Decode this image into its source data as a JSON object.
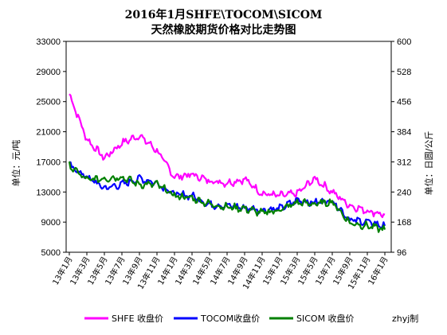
{
  "chart_data": {
    "type": "line",
    "title": "2016年1月SHFE\\TOCOM\\SICOM",
    "subtitle": "天然橡胶期货价格对比走势图",
    "ylabel_left": "单位：元/吨",
    "ylabel_right": "单位：日圆/公斤",
    "y_left": {
      "min": 5000,
      "max": 33000,
      "ticks": [
        "5000",
        "9000",
        "13000",
        "17000",
        "21000",
        "25000",
        "29000",
        "33000"
      ]
    },
    "y_right": {
      "min": 96,
      "max": 600,
      "ticks": [
        "96",
        "168",
        "240",
        "312",
        "384",
        "456",
        "528",
        "600"
      ]
    },
    "x_ticks": [
      "13年1月",
      "13年3月",
      "13年5月",
      "13年7月",
      "13年9月",
      "13年11月",
      "14年1月",
      "14年3月",
      "14年5月",
      "14年7月",
      "14年9月",
      "14年11月",
      "15年1月",
      "15年3月",
      "15年5月",
      "15年7月",
      "15年9月",
      "15年11月",
      "16年1月"
    ],
    "x": [
      "2013-01",
      "2013-03",
      "2013-05",
      "2013-07",
      "2013-09",
      "2013-11",
      "2014-01",
      "2014-03",
      "2014-05",
      "2014-07",
      "2014-09",
      "2014-11",
      "2015-01",
      "2015-03",
      "2015-05",
      "2015-07",
      "2015-09",
      "2015-11",
      "2016-01"
    ],
    "series": [
      {
        "name": "SHFE 收盘价",
        "axis": "left",
        "color": "#ff00ff",
        "values": [
          26000,
          20000,
          17500,
          19500,
          20500,
          18500,
          15000,
          15300,
          14500,
          14200,
          14700,
          12800,
          12500,
          12800,
          14800,
          13000,
          11200,
          10500,
          10000
        ]
      },
      {
        "name": "TOCOM收盘价",
        "axis": "left",
        "color": "#0000ff",
        "values": [
          16500,
          15000,
          13500,
          14000,
          14800,
          14200,
          12700,
          12500,
          11300,
          11200,
          10900,
          10600,
          10800,
          11900,
          11600,
          11900,
          9300,
          9000,
          8500
        ]
      },
      {
        "name": "SICOM 收盘价",
        "axis": "left",
        "color": "#008000",
        "values": [
          16500,
          14600,
          14800,
          15000,
          14000,
          14000,
          12500,
          12200,
          11400,
          11000,
          10800,
          10200,
          10600,
          11600,
          11400,
          11700,
          8900,
          8500,
          8000
        ]
      }
    ],
    "legend_position": "bottom",
    "grid": false
  },
  "legend": [
    {
      "label": "SHFE 收盘价",
      "color": "#ff00ff"
    },
    {
      "label": "TOCOM收盘价",
      "color": "#0000ff"
    },
    {
      "label": "SICOM 收盘价",
      "color": "#008000"
    }
  ],
  "credit": "zhyj制"
}
